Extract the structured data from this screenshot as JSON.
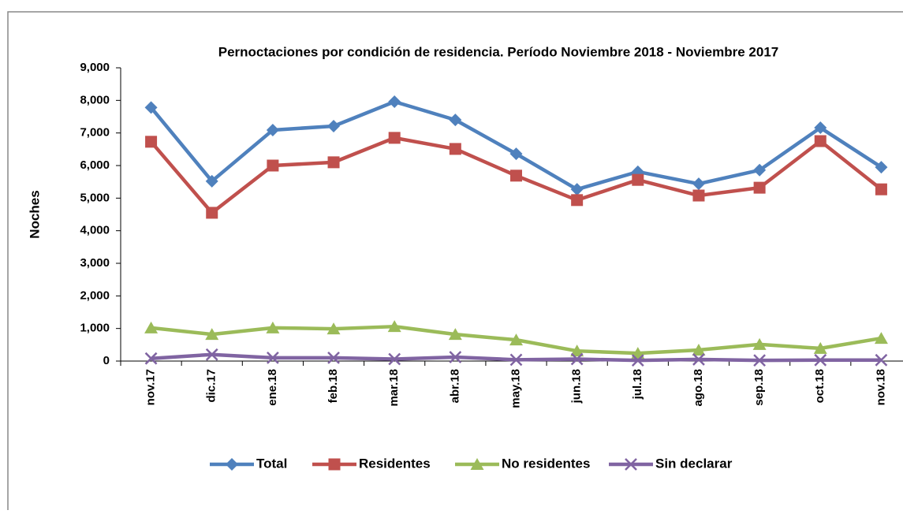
{
  "chart_data": {
    "type": "line",
    "title": "Pernoctaciones por condición de residencia. Período  Noviembre 2018 - Noviembre 2017",
    "y_label": "Noches",
    "categories": [
      "nov.17",
      "dic.17",
      "ene.18",
      "feb.18",
      "mar.18",
      "abr.18",
      "may.18",
      "jun.18",
      "jul.18",
      "ago.18",
      "sep.18",
      "oct.18",
      "nov.18"
    ],
    "series": [
      {
        "name": "Total",
        "color": "#4f81bd",
        "marker": "diamond",
        "values": [
          7780,
          5520,
          7090,
          7210,
          7960,
          7400,
          6360,
          5270,
          5810,
          5440,
          5860,
          7160,
          5950
        ]
      },
      {
        "name": "Residentes",
        "color": "#c0504d",
        "marker": "square",
        "values": [
          6730,
          4550,
          6000,
          6100,
          6850,
          6510,
          5690,
          4940,
          5560,
          5080,
          5320,
          6750,
          5270
        ]
      },
      {
        "name": "No residentes",
        "color": "#9bbb59",
        "marker": "triangle",
        "values": [
          1020,
          820,
          1020,
          990,
          1060,
          820,
          650,
          310,
          240,
          340,
          510,
          390,
          700
        ]
      },
      {
        "name": "Sin declarar",
        "color": "#8064a2",
        "marker": "x",
        "values": [
          80,
          200,
          100,
          100,
          60,
          120,
          40,
          60,
          20,
          50,
          20,
          30,
          30
        ]
      }
    ],
    "ylim": [
      0,
      9000
    ],
    "yticks": [
      0,
      {
        "value": 1000,
        "label": "1,000"
      },
      {
        "value": 2000,
        "label": "2,000"
      },
      {
        "value": 3000,
        "label": "3,000"
      },
      {
        "value": 4000,
        "label": "4,000"
      },
      {
        "value": 5000,
        "label": "5,000"
      },
      {
        "value": 6000,
        "label": "6,000"
      },
      {
        "value": 7000,
        "label": "7,000"
      },
      {
        "value": 8000,
        "label": "8,000"
      },
      {
        "value": 9000,
        "label": "9,000"
      }
    ],
    "legend": "bottom"
  }
}
